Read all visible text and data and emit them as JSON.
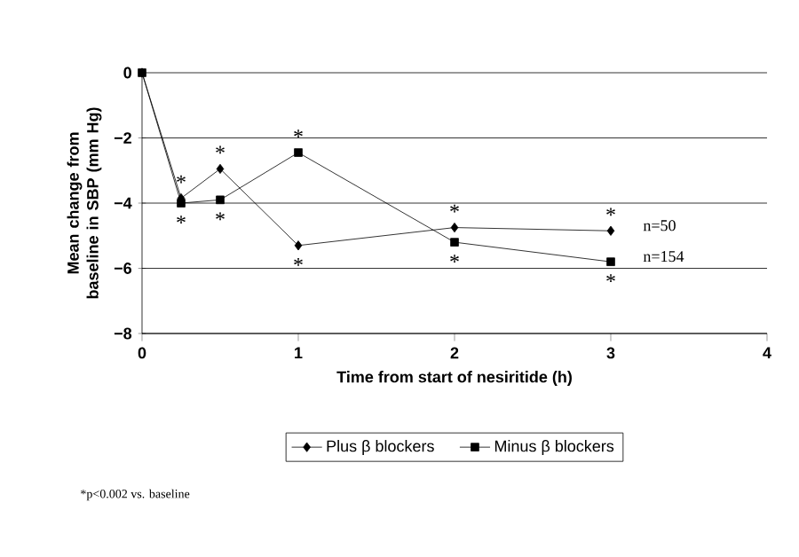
{
  "chart_data": {
    "type": "line",
    "xlabel": "Time from start of nesiritide (h)",
    "ylabel": "Mean change from baseline in SBP (mm Hg)",
    "x": [
      0,
      0.25,
      0.5,
      1,
      2,
      3
    ],
    "series": [
      {
        "name": "Plus β blockers",
        "color": "#000000",
        "marker": "diamond",
        "values": [
          0,
          -3.85,
          -2.95,
          -5.3,
          -4.75,
          -4.85
        ]
      },
      {
        "name": "Minus β blockers",
        "color": "#000000",
        "marker": "square",
        "values": [
          0,
          -4.0,
          -3.9,
          -2.45,
          -5.2,
          -5.8
        ]
      }
    ],
    "xlim": [
      0,
      4
    ],
    "xticks": [
      0,
      1,
      2,
      3,
      4
    ],
    "ylim": [
      -8,
      0
    ],
    "yticks": [
      {
        "value": -8,
        "label": "−8"
      },
      {
        "value": -6,
        "label": "−6"
      },
      {
        "value": -4,
        "label": "−4"
      },
      {
        "value": -2,
        "label": "−2"
      },
      0
    ],
    "grid": "y",
    "legend": "bottom",
    "line_style": "solid",
    "annotations": [
      {
        "text": "*",
        "x": 0.25,
        "y": -3.85
      },
      {
        "text": "*",
        "x": 0.25,
        "y": -4.0
      },
      {
        "text": "*",
        "x": 0.5,
        "y": -2.95
      },
      {
        "text": "*",
        "x": 0.5,
        "y": -3.9
      },
      {
        "text": "*",
        "x": 1,
        "y": -2.45
      },
      {
        "text": "*",
        "x": 1,
        "y": -5.3
      },
      {
        "text": "*",
        "x": 2,
        "y": -4.75
      },
      {
        "text": "*",
        "x": 2,
        "y": -5.2
      },
      {
        "text": "*",
        "x": 3,
        "y": -4.85
      },
      {
        "text": "*",
        "x": 3,
        "y": -5.8
      },
      {
        "text": "n=50",
        "x": 3,
        "y": -4.85
      },
      {
        "text": "n=154",
        "x": 3,
        "y": -5.8
      },
      "*p<0.002 vs. baseline"
    ]
  }
}
